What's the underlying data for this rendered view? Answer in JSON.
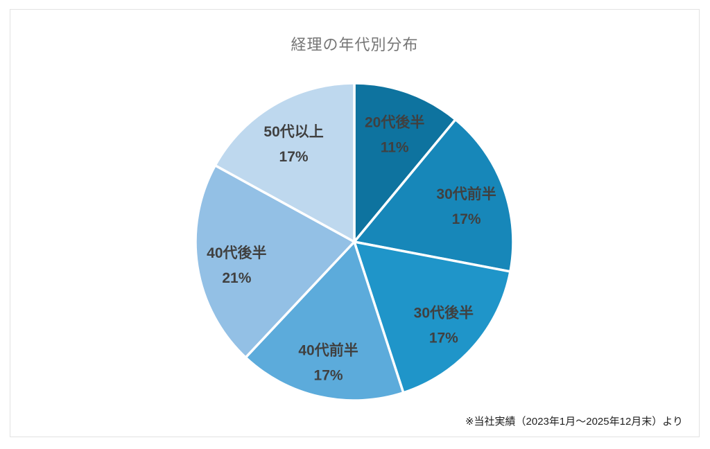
{
  "chart": {
    "title": "経理の年代別分布",
    "footnote": "※当社実績（2023年1月～2025年12月末）より"
  },
  "chart_data": {
    "type": "pie",
    "title": "経理の年代別分布",
    "start_angle_deg": 0,
    "direction": "clockwise",
    "legend": "none",
    "categories": [
      "20代後半",
      "30代前半",
      "30代後半",
      "40代前半",
      "40代後半",
      "50代以上"
    ],
    "values": [
      11,
      17,
      17,
      17,
      21,
      17
    ],
    "slices": [
      {
        "label": "20代後半",
        "value": 11,
        "pct_label": "11%",
        "color": "#0E739F"
      },
      {
        "label": "30代前半",
        "value": 17,
        "pct_label": "17%",
        "color": "#1787B9"
      },
      {
        "label": "30代後半",
        "value": 17,
        "pct_label": "17%",
        "color": "#1F95C9"
      },
      {
        "label": "40代前半",
        "value": 17,
        "pct_label": "17%",
        "color": "#5CABDB"
      },
      {
        "label": "40代後半",
        "value": 21,
        "pct_label": "21%",
        "color": "#93C0E5"
      },
      {
        "label": "50代以上",
        "value": 17,
        "pct_label": "17%",
        "color": "#BED8EE"
      }
    ],
    "data_label_color": "#404040",
    "slice_border_color": "#FFFFFF",
    "title_color": "#767676",
    "footnote": "※当社実績（2023年1月～2025年12月末）より"
  }
}
